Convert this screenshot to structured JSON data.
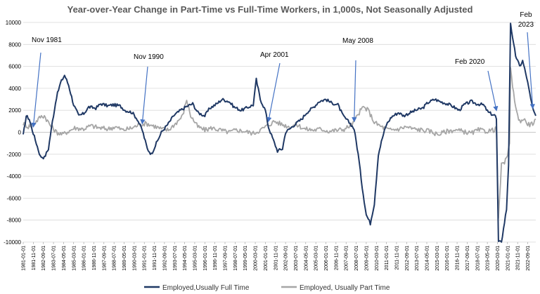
{
  "chart_data": {
    "type": "line",
    "title": "Year-over-Year Change in Part-Time vs Full-Time Workers, in 1,000s, Not Seasonally Adjusted",
    "xlabel": "",
    "ylabel": "",
    "xlim": [
      "1981-01",
      "2023-05"
    ],
    "ylim": [
      -10000,
      10000
    ],
    "yticks": [
      10000,
      8000,
      6000,
      4000,
      2000,
      0,
      -2000,
      -4000,
      -6000,
      -8000,
      -10000
    ],
    "x_tick_labels": [
      "1981-01",
      "1981-11",
      "1982-09",
      "1983-07",
      "1984-05",
      "1985-03",
      "1986-01",
      "1986-11",
      "1987-09",
      "1988-07",
      "1989-05",
      "1990-03",
      "1991-01",
      "1991-11",
      "1992-09",
      "1993-07",
      "1994-05",
      "1995-03",
      "1996-01",
      "1996-11",
      "1997-09",
      "1998-07",
      "1999-05",
      "2000-03",
      "2001-01",
      "2001-11",
      "2002-09",
      "2003-07",
      "2004-05",
      "2005-03",
      "2006-01",
      "2006-11",
      "2007-09",
      "2008-07",
      "2009-05",
      "2010-03",
      "2011-01",
      "2011-11",
      "2012-09",
      "2013-07",
      "2014-05",
      "2015-03",
      "2016-01",
      "2016-11",
      "2017-09",
      "2018-07",
      "2019-05",
      "2020-03",
      "2021-01",
      "2021-11",
      "2022-09"
    ],
    "grid": "horizontal",
    "legend_position": "bottom",
    "series": [
      {
        "name": "Employed,Usually Full Time",
        "color": "#1f3864",
        "points": [
          [
            "1981-01",
            -300
          ],
          [
            "1981-04",
            1500
          ],
          [
            "1981-07",
            1200
          ],
          [
            "1981-10",
            200
          ],
          [
            "1982-02",
            -1000
          ],
          [
            "1982-06",
            -2200
          ],
          [
            "1982-10",
            -2300
          ],
          [
            "1983-02",
            -1500
          ],
          [
            "1983-06",
            1000
          ],
          [
            "1983-10",
            3200
          ],
          [
            "1984-02",
            4500
          ],
          [
            "1984-06",
            5200
          ],
          [
            "1984-10",
            4300
          ],
          [
            "1985-03",
            2500
          ],
          [
            "1985-08",
            1500
          ],
          [
            "1986-01",
            1700
          ],
          [
            "1986-06",
            2300
          ],
          [
            "1987-01",
            2200
          ],
          [
            "1987-06",
            2600
          ],
          [
            "1988-01",
            2400
          ],
          [
            "1988-06",
            2500
          ],
          [
            "1989-01",
            2400
          ],
          [
            "1989-06",
            2000
          ],
          [
            "1990-01",
            1800
          ],
          [
            "1990-06",
            1200
          ],
          [
            "1990-11",
            200
          ],
          [
            "1991-04",
            -1500
          ],
          [
            "1991-08",
            -2000
          ],
          [
            "1992-01",
            -1000
          ],
          [
            "1992-06",
            0
          ],
          [
            "1993-01",
            800
          ],
          [
            "1993-06",
            1500
          ],
          [
            "1994-01",
            2000
          ],
          [
            "1994-06",
            2300
          ],
          [
            "1995-01",
            2600
          ],
          [
            "1995-06",
            1800
          ],
          [
            "1996-01",
            1500
          ],
          [
            "1996-06",
            2200
          ],
          [
            "1997-01",
            2600
          ],
          [
            "1997-06",
            3000
          ],
          [
            "1998-01",
            2800
          ],
          [
            "1998-06",
            2300
          ],
          [
            "1999-01",
            2000
          ],
          [
            "1999-06",
            2200
          ],
          [
            "2000-01",
            2500
          ],
          [
            "2000-04",
            4800
          ],
          [
            "2000-08",
            3000
          ],
          [
            "2001-01",
            2000
          ],
          [
            "2001-04",
            500
          ],
          [
            "2001-08",
            -500
          ],
          [
            "2002-01",
            -1700
          ],
          [
            "2002-06",
            -1500
          ],
          [
            "2002-09",
            0
          ],
          [
            "2003-01",
            300
          ],
          [
            "2003-06",
            700
          ],
          [
            "2004-01",
            1200
          ],
          [
            "2004-06",
            1800
          ],
          [
            "2005-01",
            2300
          ],
          [
            "2005-06",
            2800
          ],
          [
            "2006-01",
            3000
          ],
          [
            "2006-06",
            2700
          ],
          [
            "2007-01",
            2500
          ],
          [
            "2007-06",
            1500
          ],
          [
            "2008-01",
            800
          ],
          [
            "2008-05",
            300
          ],
          [
            "2008-09",
            -2000
          ],
          [
            "2009-01",
            -5000
          ],
          [
            "2009-05",
            -7500
          ],
          [
            "2009-09",
            -8300
          ],
          [
            "2010-01",
            -6500
          ],
          [
            "2010-05",
            -2000
          ],
          [
            "2010-09",
            -500
          ],
          [
            "2011-01",
            700
          ],
          [
            "2011-06",
            1400
          ],
          [
            "2012-01",
            1800
          ],
          [
            "2012-06",
            1500
          ],
          [
            "2013-01",
            1800
          ],
          [
            "2013-06",
            2000
          ],
          [
            "2014-01",
            2200
          ],
          [
            "2014-06",
            2700
          ],
          [
            "2015-01",
            3000
          ],
          [
            "2015-06",
            2800
          ],
          [
            "2016-01",
            2600
          ],
          [
            "2016-06",
            2400
          ],
          [
            "2017-01",
            2000
          ],
          [
            "2017-06",
            2500
          ],
          [
            "2018-01",
            2800
          ],
          [
            "2018-06",
            2600
          ],
          [
            "2019-01",
            2500
          ],
          [
            "2019-06",
            1800
          ],
          [
            "2020-01",
            1500
          ],
          [
            "2020-02",
            1200
          ],
          [
            "2020-04",
            -10000
          ],
          [
            "2020-07",
            -10000
          ],
          [
            "2020-12",
            -7000
          ],
          [
            "2021-02",
            -3000
          ],
          [
            "2021-04",
            10000
          ],
          [
            "2021-06",
            8500
          ],
          [
            "2021-09",
            7000
          ],
          [
            "2022-01",
            6000
          ],
          [
            "2022-04",
            6500
          ],
          [
            "2022-08",
            5000
          ],
          [
            "2022-12",
            3000
          ],
          [
            "2023-03",
            1800
          ],
          [
            "2023-05",
            1500
          ]
        ]
      },
      {
        "name": "Employed, Usually Part Time",
        "color": "#a6a6a6",
        "points": [
          [
            "1981-01",
            800
          ],
          [
            "1981-06",
            500
          ],
          [
            "1982-01",
            900
          ],
          [
            "1982-06",
            1400
          ],
          [
            "1982-10",
            1500
          ],
          [
            "1983-04",
            600
          ],
          [
            "1983-10",
            0
          ],
          [
            "1984-04",
            -200
          ],
          [
            "1984-10",
            100
          ],
          [
            "1985-04",
            400
          ],
          [
            "1986-01",
            300
          ],
          [
            "1986-08",
            600
          ],
          [
            "1987-04",
            400
          ],
          [
            "1988-01",
            300
          ],
          [
            "1988-08",
            500
          ],
          [
            "1989-04",
            200
          ],
          [
            "1990-01",
            400
          ],
          [
            "1990-08",
            700
          ],
          [
            "1991-03",
            800
          ],
          [
            "1991-10",
            600
          ],
          [
            "1992-06",
            300
          ],
          [
            "1993-01",
            200
          ],
          [
            "1993-08",
            800
          ],
          [
            "1994-03",
            1500
          ],
          [
            "1994-07",
            3000
          ],
          [
            "1994-11",
            1500
          ],
          [
            "1995-06",
            500
          ],
          [
            "1996-01",
            200
          ],
          [
            "1996-08",
            400
          ],
          [
            "1997-04",
            200
          ],
          [
            "1998-01",
            0
          ],
          [
            "1998-08",
            200
          ],
          [
            "1999-04",
            100
          ],
          [
            "2000-01",
            -100
          ],
          [
            "2000-08",
            200
          ],
          [
            "2001-03",
            600
          ],
          [
            "2001-10",
            1000
          ],
          [
            "2002-06",
            700
          ],
          [
            "2003-01",
            500
          ],
          [
            "2003-08",
            700
          ],
          [
            "2004-04",
            300
          ],
          [
            "2005-01",
            200
          ],
          [
            "2005-08",
            300
          ],
          [
            "2006-04",
            100
          ],
          [
            "2007-01",
            200
          ],
          [
            "2007-08",
            300
          ],
          [
            "2008-04",
            800
          ],
          [
            "2008-10",
            1800
          ],
          [
            "2009-02",
            2300
          ],
          [
            "2009-07",
            2000
          ],
          [
            "2010-01",
            900
          ],
          [
            "2010-08",
            500
          ],
          [
            "2011-04",
            200
          ],
          [
            "2012-01",
            300
          ],
          [
            "2012-08",
            500
          ],
          [
            "2013-04",
            300
          ],
          [
            "2014-01",
            200
          ],
          [
            "2014-08",
            100
          ],
          [
            "2015-04",
            -200
          ],
          [
            "2016-01",
            100
          ],
          [
            "2016-08",
            200
          ],
          [
            "2017-04",
            100
          ],
          [
            "2018-01",
            -100
          ],
          [
            "2018-08",
            200
          ],
          [
            "2019-04",
            100
          ],
          [
            "2019-11",
            200
          ],
          [
            "2020-02",
            300
          ],
          [
            "2020-04",
            -7800
          ],
          [
            "2020-07",
            -3000
          ],
          [
            "2020-12",
            -2500
          ],
          [
            "2021-03",
            -1000
          ],
          [
            "2021-04",
            5700
          ],
          [
            "2021-07",
            3500
          ],
          [
            "2021-12",
            1000
          ],
          [
            "2022-05",
            1200
          ],
          [
            "2022-10",
            700
          ],
          [
            "2023-02",
            800
          ],
          [
            "2023-05",
            1200
          ]
        ]
      }
    ],
    "annotations": [
      {
        "label": "Nov 1981",
        "x": "1981-11",
        "y": 500
      },
      {
        "label": "Nov 1990",
        "x": "1990-11",
        "y": 800
      },
      {
        "label": "Apr 2001",
        "x": "2001-04",
        "y": 1000
      },
      {
        "label": "May 2008",
        "x": "2008-05",
        "y": 1000
      },
      {
        "label": "Feb 2020",
        "x": "2020-02",
        "y": 2000
      },
      {
        "label": "Feb 2023",
        "x": "2023-02",
        "y": 2200
      }
    ]
  }
}
